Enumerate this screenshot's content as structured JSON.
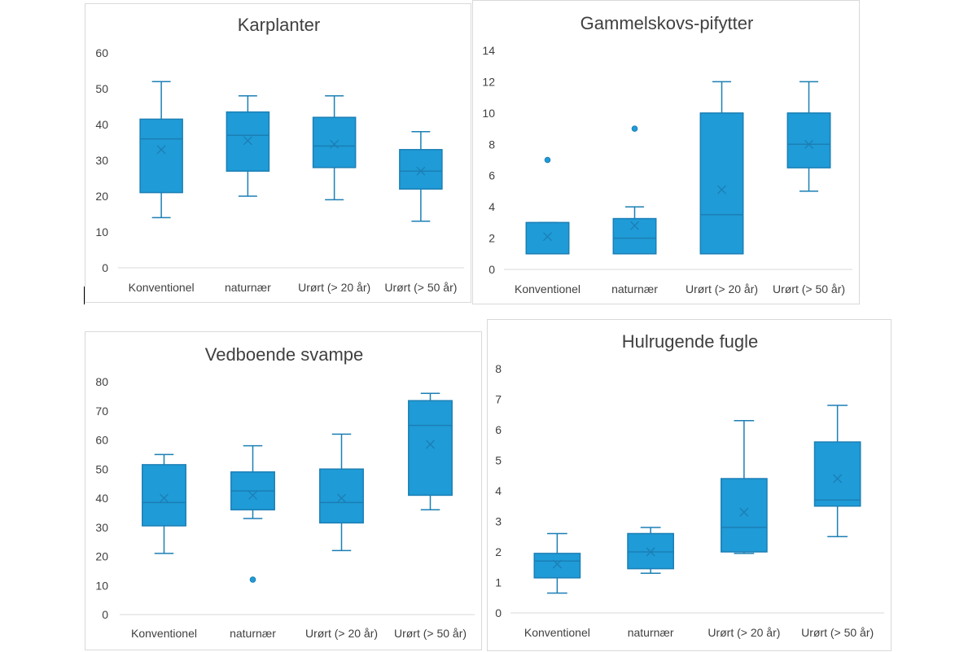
{
  "colors": {
    "box_fill": "#1f9bd7",
    "box_stroke": "#1b7fb5",
    "axis": "#d9d9d9",
    "text": "#404040"
  },
  "chart_data": [
    {
      "type": "box",
      "title": "Karplanter",
      "categories": [
        "Konventionel",
        "naturnær",
        "Urørt (> 20 år)",
        "Urørt (> 50 år)"
      ],
      "ylim": [
        0,
        60
      ],
      "yticks": [
        0,
        10,
        20,
        30,
        40,
        50,
        60
      ],
      "grid": false,
      "boxes": [
        {
          "min": 14,
          "q1": 21,
          "median": 36,
          "q3": 41.5,
          "max": 52,
          "mean": 33,
          "outliers": []
        },
        {
          "min": 20,
          "q1": 27,
          "median": 37,
          "q3": 43.5,
          "max": 48,
          "mean": 35.5,
          "outliers": []
        },
        {
          "min": 19,
          "q1": 28,
          "median": 34,
          "q3": 42,
          "max": 48,
          "mean": 34.5,
          "outliers": []
        },
        {
          "min": 13,
          "q1": 22,
          "median": 27,
          "q3": 33,
          "max": 38,
          "mean": 27,
          "outliers": []
        }
      ]
    },
    {
      "type": "box",
      "title": "Gammelskovs-pifytter",
      "categories": [
        "Konventionel",
        "naturnær",
        "Urørt (> 20 år)",
        "Urørt (> 50 år)"
      ],
      "ylim": [
        0,
        14
      ],
      "yticks": [
        0,
        2,
        4,
        6,
        8,
        10,
        12,
        14
      ],
      "grid": false,
      "boxes": [
        {
          "min": 1,
          "q1": 1,
          "median": 1,
          "q3": 3,
          "max": 3,
          "mean": 2.1,
          "outliers": [
            7
          ]
        },
        {
          "min": 1,
          "q1": 1,
          "median": 2,
          "q3": 3.25,
          "max": 4,
          "mean": 2.8,
          "outliers": [
            9
          ]
        },
        {
          "min": 1,
          "q1": 1,
          "median": 3.5,
          "q3": 10,
          "max": 12,
          "mean": 5.1,
          "outliers": []
        },
        {
          "min": 5,
          "q1": 6.5,
          "median": 8,
          "q3": 10,
          "max": 12,
          "mean": 8,
          "outliers": []
        }
      ]
    },
    {
      "type": "box",
      "title": "Vedboende svampe",
      "categories": [
        "Konventionel",
        "naturnær",
        "Urørt (> 20 år)",
        "Urørt (> 50 år)"
      ],
      "ylim": [
        0,
        80
      ],
      "yticks": [
        0,
        10,
        20,
        30,
        40,
        50,
        60,
        70,
        80
      ],
      "grid": false,
      "boxes": [
        {
          "min": 21,
          "q1": 30.5,
          "median": 38.5,
          "q3": 51.5,
          "max": 55,
          "mean": 40,
          "outliers": []
        },
        {
          "min": 33,
          "q1": 36,
          "median": 42.5,
          "q3": 49,
          "max": 58,
          "mean": 41,
          "outliers": [
            12
          ]
        },
        {
          "min": 22,
          "q1": 31.5,
          "median": 38.5,
          "q3": 50,
          "max": 62,
          "mean": 40,
          "outliers": []
        },
        {
          "min": 36,
          "q1": 41,
          "median": 65,
          "q3": 73.5,
          "max": 76,
          "mean": 58.5,
          "outliers": []
        }
      ]
    },
    {
      "type": "box",
      "title": "Hulrugende fugle",
      "categories": [
        "Konventionel",
        "naturnær",
        "Urørt (> 20 år)",
        "Urørt (> 50 år)"
      ],
      "ylim": [
        0,
        8
      ],
      "yticks": [
        0,
        1,
        2,
        3,
        4,
        5,
        6,
        7,
        8
      ],
      "grid": false,
      "boxes": [
        {
          "min": 0.65,
          "q1": 1.15,
          "median": 1.7,
          "q3": 1.95,
          "max": 2.6,
          "mean": 1.6,
          "outliers": []
        },
        {
          "min": 1.3,
          "q1": 1.45,
          "median": 2.0,
          "q3": 2.6,
          "max": 2.8,
          "mean": 2.0,
          "outliers": []
        },
        {
          "min": 1.95,
          "q1": 2.0,
          "median": 2.8,
          "q3": 4.4,
          "max": 6.3,
          "mean": 3.3,
          "outliers": []
        },
        {
          "min": 2.5,
          "q1": 3.5,
          "median": 3.7,
          "q3": 5.6,
          "max": 6.8,
          "mean": 4.4,
          "outliers": []
        }
      ]
    }
  ]
}
